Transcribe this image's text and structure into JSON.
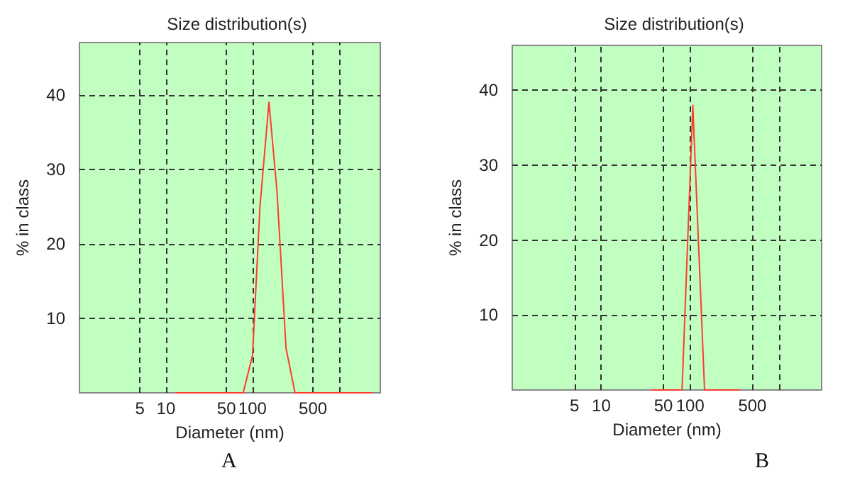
{
  "chart_data": [
    {
      "type": "line",
      "title": "Size distribution(s)",
      "xlabel": "Diameter (nm)",
      "ylabel": "% in class",
      "annotations": [
        "A"
      ],
      "series": [
        {
          "color": "#ff3b30",
          "x": [
            13,
            78,
            100,
            122,
            155,
            192,
            244,
            310,
            2400
          ],
          "values": [
            0,
            0,
            5,
            25,
            39,
            27,
            6,
            0,
            0
          ]
        }
      ],
      "log": "x",
      "xlim": [
        1,
        3000
      ],
      "xticks": [
        5,
        10,
        50,
        100,
        500,
        {
          "value": 1000,
          "label": null
        }
      ],
      "ylim": [
        0,
        47
      ],
      "yticks": [
        {
          "value": 0,
          "label": null
        },
        10,
        20,
        30,
        40
      ],
      "grid": true,
      "line_style": "solid",
      "marker": "none"
    },
    {
      "type": "line",
      "title": "Size distribution(s)",
      "xlabel": "Diameter (nm)",
      "ylabel": "% in class",
      "annotations": [
        "B"
      ],
      "series": [
        {
          "color": "#ff3b30",
          "x": [
            37,
            81,
            107,
            145,
            355
          ],
          "values": [
            0,
            0,
            38,
            0,
            0
          ]
        }
      ],
      "log": "x",
      "xlim": [
        1,
        3000
      ],
      "xticks": [
        5,
        10,
        50,
        100,
        500,
        {
          "value": 1000,
          "label": null
        }
      ],
      "ylim": [
        0,
        46
      ],
      "yticks": [
        {
          "value": 0,
          "label": null
        },
        10,
        20,
        30,
        40
      ],
      "grid": true,
      "line_style": "solid",
      "marker": "none"
    }
  ]
}
